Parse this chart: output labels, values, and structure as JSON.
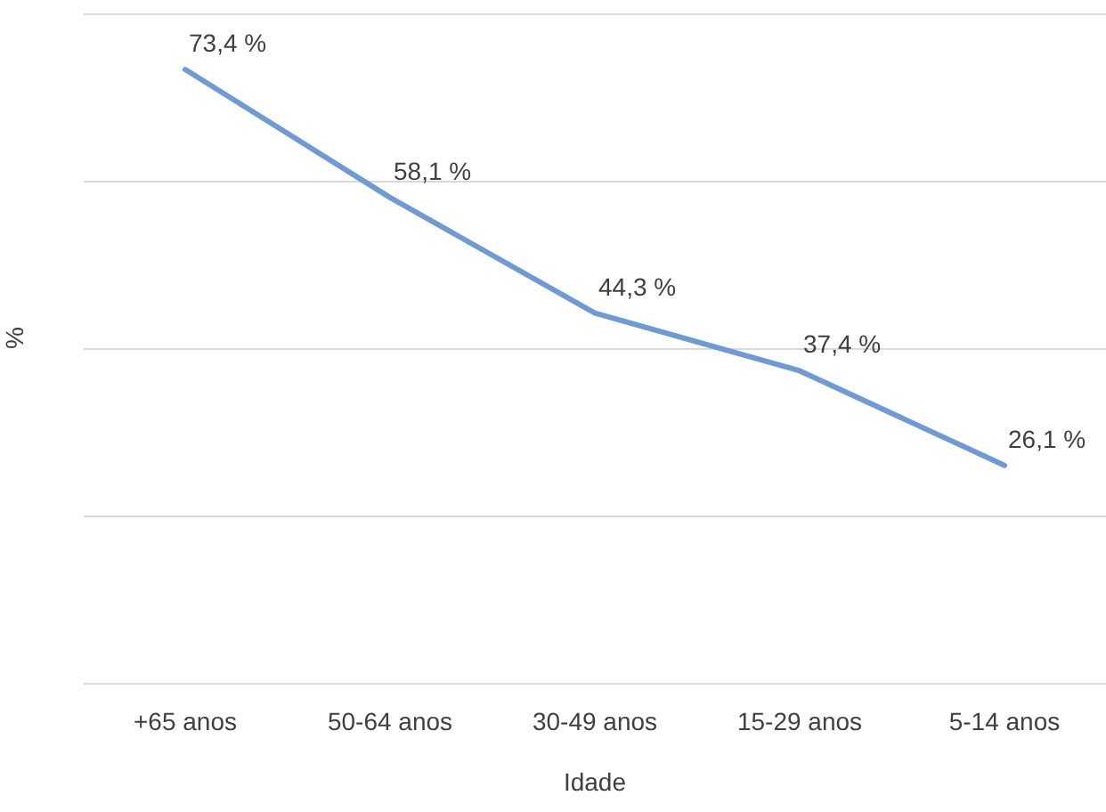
{
  "chart_data": {
    "type": "line",
    "xlabel": "Idade",
    "ylabel": "%",
    "categories": [
      "+65 anos",
      "50-64 anos",
      "30-49 anos",
      "15-29 anos",
      "5-14 anos"
    ],
    "series": [
      {
        "color": "#6f9ad3",
        "values": [
          73.4,
          58.1,
          44.3,
          37.4,
          26.1
        ],
        "value_labels": [
          "73,4 %",
          "58,1 %",
          "44,3 %",
          "37,4 %",
          "26,1 %"
        ]
      }
    ],
    "ylim": [
      0,
      80
    ],
    "yticks": [
      {
        "value": 0,
        "label": null
      },
      {
        "value": 20,
        "label": null
      },
      {
        "value": 40,
        "label": null
      },
      {
        "value": 60,
        "label": null
      },
      {
        "value": 80,
        "label": null
      }
    ],
    "tick_labels": "x",
    "grid": "y",
    "marker": "none",
    "line_style": "solid"
  }
}
